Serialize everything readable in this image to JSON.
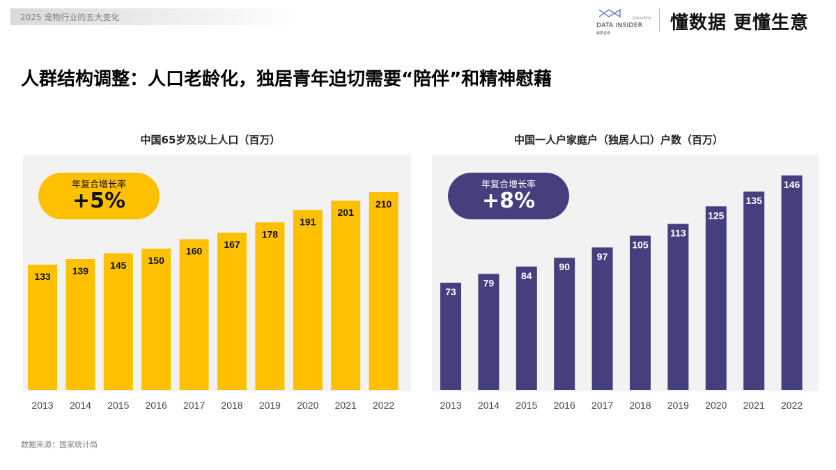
{
  "header": {
    "section": "2025  宠物行业的五大变化",
    "logo_brand": "DATA INSIDER",
    "logo_sub": "解数咨询",
    "logo_consulting": "Consulting",
    "slogan": "懂数据 更懂生意"
  },
  "title": "人群结构调整：人口老龄化，独居青年迫切需要“陪伴”和精神慰藉",
  "source": "数据来源：国家统计局",
  "colors": {
    "yellow": "#FFC000",
    "purple": "#453F7E",
    "panel": "#F2F2F2"
  },
  "chart_data": [
    {
      "type": "bar",
      "title": "中国65岁及以上人口（百万）",
      "categories": [
        "2013",
        "2014",
        "2015",
        "2016",
        "2017",
        "2018",
        "2019",
        "2020",
        "2021",
        "2022"
      ],
      "values": [
        133,
        139,
        145,
        150,
        160,
        167,
        178,
        191,
        201,
        210
      ],
      "color": "#FFC000",
      "annotation": {
        "label": "年复合增长率",
        "value": "+5%"
      },
      "grid": false
    },
    {
      "type": "bar",
      "title": "中国一人户家庭户（独居人口）户数（百万）",
      "categories": [
        "2013",
        "2014",
        "2015",
        "2016",
        "2017",
        "2018",
        "2019",
        "2020",
        "2021",
        "2022"
      ],
      "values": [
        73,
        79,
        84,
        90,
        97,
        105,
        113,
        125,
        135,
        146
      ],
      "color": "#453F7E",
      "annotation": {
        "label": "年复合增长率",
        "value": "+8%"
      },
      "grid": false
    }
  ]
}
